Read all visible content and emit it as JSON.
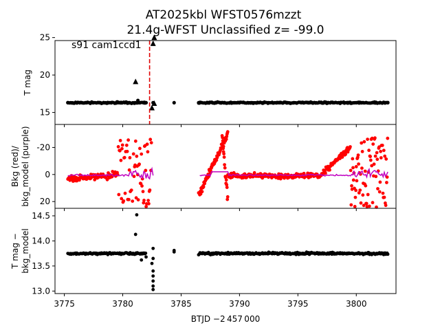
{
  "title_line1": "AT2025kbl  WFST0576mzzt",
  "title_line2": "21.4g-WFST Unclassified z= -99.0",
  "annotation": "s91 cam1ccd1",
  "xlabel": "BTJD −2 457 000",
  "chart_data": [
    {
      "type": "scatter",
      "panel": "top",
      "ylabel": "T mag",
      "xlim": [
        3774.2,
        3803.4
      ],
      "ylim": [
        24.6,
        13.4
      ],
      "y_inverted": true,
      "xticks": [
        3775,
        3780,
        3785,
        3790,
        3795,
        3800
      ],
      "yticks": [
        15,
        20,
        25
      ],
      "series": [
        {
          "marker": "circle",
          "color": "#000000",
          "points": [
            [
              3775.3,
              16.3
            ],
            [
              3776.5,
              16.3
            ],
            [
              3778,
              16.3
            ],
            [
              3779.5,
              16.3
            ],
            [
              3780.5,
              16.3
            ],
            [
              3781.3,
              16.6
            ],
            [
              3782.0,
              16.3
            ],
            [
              3782.6,
              16.3
            ],
            [
              3784.4,
              16.3
            ],
            [
              3786.5,
              16.3
            ],
            [
              3788,
              16.3
            ],
            [
              3790,
              16.3
            ],
            [
              3792,
              16.3
            ],
            [
              3794,
              16.3
            ],
            [
              3796,
              16.3
            ],
            [
              3798,
              16.3
            ],
            [
              3800,
              16.3
            ],
            [
              3801.5,
              16.3
            ],
            [
              3802.7,
              16.3
            ]
          ]
        },
        {
          "marker": "triangle",
          "color": "#000000",
          "points": [
            [
              3781.1,
              19.1
            ],
            [
              3782.5,
              15.6
            ],
            [
              3782.7,
              16.2
            ],
            [
              3782.6,
              24.2
            ],
            [
              3782.7,
              25.0
            ]
          ]
        }
      ],
      "vline": {
        "x": 3782.3,
        "color": "#e00000",
        "style": "dashed"
      }
    },
    {
      "type": "scatter",
      "panel": "middle",
      "ylabel": "Bkg (red)/\nbkg_model (purple)",
      "xlim": [
        3774.2,
        3803.4
      ],
      "ylim": [
        -37,
        25
      ],
      "yticks": [
        20,
        0,
        -20
      ],
      "series": [
        {
          "name": "Bkg",
          "color": "#ff0000",
          "marker": "circle"
        },
        {
          "name": "bkg_model",
          "color": "#c000c0",
          "marker": "line"
        }
      ]
    },
    {
      "type": "scatter",
      "panel": "bottom",
      "ylabel": "T mag −\nbkg_model",
      "xlim": [
        3774.2,
        3803.4
      ],
      "ylim": [
        14.65,
        12.95
      ],
      "y_inverted": true,
      "yticks": [
        13.0,
        13.5,
        14.0,
        14.5
      ],
      "series": [
        {
          "marker": "circle",
          "color": "#000000",
          "outliers": [
            [
              3781.1,
              14.13
            ],
            [
              3781.2,
              14.52
            ],
            [
              3782.6,
              13.03
            ],
            [
              3782.6,
              13.1
            ],
            [
              3782.6,
              13.2
            ],
            [
              3782.6,
              13.3
            ],
            [
              3782.6,
              13.4
            ],
            [
              3782.5,
              13.55
            ],
            [
              3782.6,
              13.65
            ],
            [
              3782.6,
              13.85
            ],
            [
              3784.4,
              13.78
            ],
            [
              3784.4,
              13.81
            ],
            [
              3781.6,
              13.62
            ],
            [
              3782.0,
              13.68
            ]
          ]
        }
      ]
    }
  ]
}
